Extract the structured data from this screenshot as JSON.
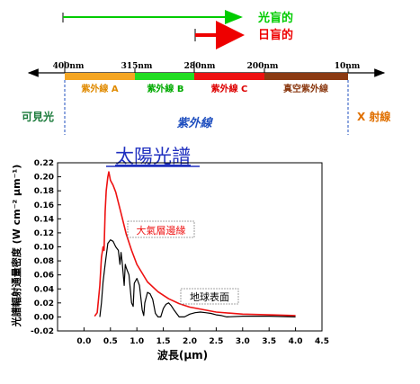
{
  "arrows": {
    "solar_blind_label": "光盲的",
    "solar_blind_color": "#00cc00",
    "day_blind_label": "日盲的",
    "day_blind_color": "#ee0000"
  },
  "spectrum_bar": {
    "wavelength_labels": [
      "400nm",
      "315nm",
      "280nm",
      "200nm",
      "10nm"
    ],
    "bands": [
      {
        "label": "紫外線 A",
        "color": "#f5a623",
        "text_color": "#e08a00"
      },
      {
        "label": "紫外線 B",
        "color": "#22dd22",
        "text_color": "#00aa00"
      },
      {
        "label": "紫外線 C",
        "color": "#ee1111",
        "text_color": "#dd0000"
      },
      {
        "label": "真空紫外線",
        "color": "#8b3a12",
        "text_color": "#8b3a12"
      }
    ],
    "visible_label": "可見光",
    "uv_label": "紫外線",
    "xray_label": "X 射線",
    "visible_color": "#1a7a3a",
    "uv_color": "#1f4fbf",
    "xray_color": "#e07000"
  },
  "chart_data": {
    "type": "line",
    "title": "太陽光譜",
    "xlabel": "波長(μm)",
    "ylabel": "光譜輻射通量密度 (W cm⁻² μm⁻¹)",
    "xlim": [
      -0.5,
      4.5
    ],
    "ylim": [
      -0.02,
      0.22
    ],
    "xticks": [
      0.0,
      0.5,
      1.0,
      1.5,
      2.0,
      2.5,
      3.0,
      3.5,
      4.0,
      4.5
    ],
    "yticks": [
      -0.02,
      0.0,
      0.02,
      0.04,
      0.06,
      0.08,
      0.1,
      0.12,
      0.14,
      0.16,
      0.18,
      0.2,
      0.22
    ],
    "xtick_labels": [
      "0.0",
      "0.5",
      "1.0",
      "1.5",
      "2.0",
      "2.5",
      "3.0",
      "3.5",
      "4.0",
      "4.5"
    ],
    "ytick_labels": [
      "-0.02",
      "0.00",
      "0.02",
      "0.04",
      "0.06",
      "0.08",
      "0.10",
      "0.12",
      "0.14",
      "0.16",
      "0.18",
      "0.20",
      "0.22"
    ],
    "series": [
      {
        "name": "大氣層邊緣",
        "color": "#ee1111",
        "x": [
          0.2,
          0.25,
          0.3,
          0.33,
          0.36,
          0.38,
          0.4,
          0.42,
          0.45,
          0.47,
          0.5,
          0.55,
          0.6,
          0.7,
          0.8,
          0.9,
          1.0,
          1.2,
          1.4,
          1.6,
          1.8,
          2.0,
          2.5,
          3.0,
          3.5,
          4.0
        ],
        "y": [
          0.001,
          0.006,
          0.045,
          0.085,
          0.1,
          0.095,
          0.15,
          0.18,
          0.2,
          0.207,
          0.195,
          0.188,
          0.178,
          0.148,
          0.118,
          0.095,
          0.075,
          0.05,
          0.036,
          0.026,
          0.019,
          0.014,
          0.007,
          0.004,
          0.003,
          0.002
        ]
      },
      {
        "name": "地球表面",
        "color": "#000000",
        "x": [
          0.3,
          0.33,
          0.36,
          0.4,
          0.45,
          0.5,
          0.55,
          0.6,
          0.65,
          0.68,
          0.7,
          0.72,
          0.76,
          0.78,
          0.8,
          0.85,
          0.9,
          0.93,
          0.95,
          1.0,
          1.05,
          1.1,
          1.13,
          1.15,
          1.2,
          1.25,
          1.3,
          1.35,
          1.4,
          1.45,
          1.5,
          1.55,
          1.6,
          1.65,
          1.7,
          1.75,
          1.8,
          1.85,
          1.9,
          2.0,
          2.1,
          2.2,
          2.3,
          2.4,
          2.5,
          2.6,
          2.7,
          3.0,
          3.5,
          4.0
        ],
        "y": [
          0.0,
          0.02,
          0.05,
          0.075,
          0.105,
          0.11,
          0.108,
          0.1,
          0.095,
          0.075,
          0.092,
          0.08,
          0.045,
          0.075,
          0.07,
          0.06,
          0.02,
          0.015,
          0.048,
          0.055,
          0.045,
          0.01,
          0.002,
          0.02,
          0.035,
          0.033,
          0.025,
          0.005,
          0.0,
          0.0,
          0.012,
          0.018,
          0.02,
          0.016,
          0.01,
          0.005,
          0.0,
          0.0,
          0.0,
          0.004,
          0.006,
          0.007,
          0.006,
          0.005,
          0.003,
          0.002,
          0.0,
          0.001,
          0.001,
          0.0
        ]
      }
    ],
    "annotations": [
      {
        "text": "大氣層邊緣",
        "color": "#ee1111"
      },
      {
        "text": "地球表面",
        "color": "#000000"
      }
    ]
  }
}
